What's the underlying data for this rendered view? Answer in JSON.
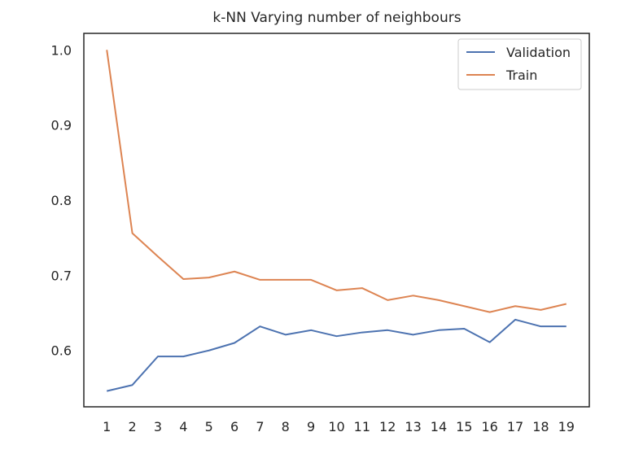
{
  "chart_data": {
    "type": "line",
    "title": "k-NN Varying number of neighbours",
    "xlabel": "",
    "ylabel": "",
    "x": [
      1,
      2,
      3,
      4,
      5,
      6,
      7,
      8,
      9,
      10,
      11,
      12,
      13,
      14,
      15,
      16,
      17,
      18,
      19
    ],
    "xlim": [
      0.1,
      19.9
    ],
    "ylim": [
      0.525,
      1.022
    ],
    "yticks": [
      "0.6",
      "0.7",
      "0.8",
      "0.9",
      "1.0"
    ],
    "ytick_values": [
      0.6,
      0.7,
      0.8,
      0.9,
      1.0
    ],
    "grid": false,
    "legend_position": "top-right",
    "series": [
      {
        "name": "Validation",
        "color": "#4c72b0",
        "values": [
          0.546,
          0.554,
          0.592,
          0.592,
          0.6,
          0.61,
          0.632,
          0.621,
          0.627,
          0.619,
          0.624,
          0.627,
          0.621,
          0.627,
          0.629,
          0.611,
          0.641,
          0.632,
          0.632
        ]
      },
      {
        "name": "Train",
        "color": "#dd8452",
        "values": [
          1.0,
          0.756,
          0.725,
          0.695,
          0.697,
          0.705,
          0.694,
          0.694,
          0.694,
          0.68,
          0.683,
          0.667,
          0.673,
          0.667,
          0.659,
          0.651,
          0.659,
          0.654,
          0.662
        ]
      }
    ]
  }
}
